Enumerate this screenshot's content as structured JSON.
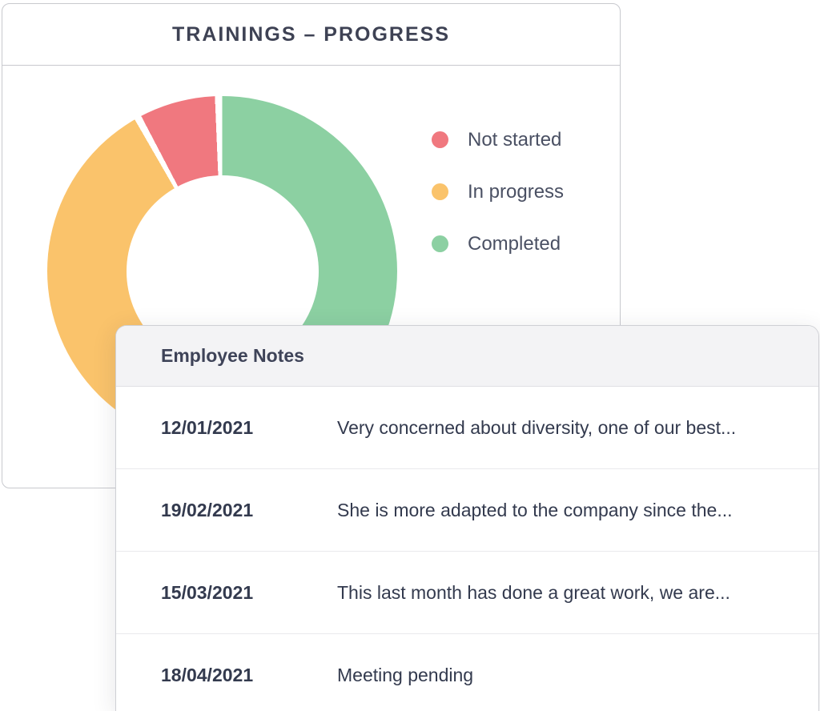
{
  "trainings_card": {
    "title": "TRAININGS – PROGRESS",
    "legend": [
      {
        "label": "Not started",
        "color": "#f0787f"
      },
      {
        "label": "In progress",
        "color": "#fac36b"
      },
      {
        "label": "Completed",
        "color": "#8cd0a2"
      }
    ]
  },
  "chart_data": {
    "type": "pie",
    "donut": true,
    "title": "TRAININGS – PROGRESS",
    "categories": [
      "Not started",
      "In progress",
      "Completed"
    ],
    "values": [
      8,
      42,
      50
    ],
    "unit": "percent (estimated from arc angles; lower arc partially occluded by notes card)",
    "colors": [
      "#f0787f",
      "#fac36b",
      "#8cd0a2"
    ],
    "legend_position": "right",
    "layout": "Completed starts at 12 o'clock clockwise, then In progress, then Not started; thin white gaps between slices"
  },
  "notes_card": {
    "title": "Employee Notes",
    "columns": [
      "date",
      "note"
    ],
    "rows": [
      {
        "date": "12/01/2021",
        "note": "Very concerned about diversity, one of our best..."
      },
      {
        "date": "19/02/2021",
        "note": "She is more adapted to the company since the..."
      },
      {
        "date": "15/03/2021",
        "note": "This last month has done a great work, we are..."
      },
      {
        "date": "18/04/2021",
        "note": "Meeting pending"
      }
    ]
  }
}
